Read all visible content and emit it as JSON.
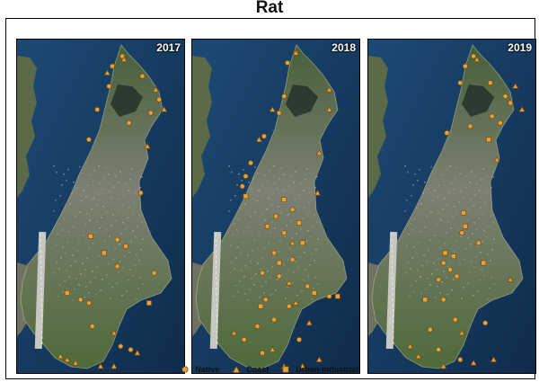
{
  "title": "Rat",
  "colors": {
    "marker": "#e8a23a",
    "water": "#13365a",
    "land": "#5b6d3f",
    "urban": "#8a8c86"
  },
  "panels": [
    {
      "year": "2017",
      "native": [
        [
          0.63,
          0.05
        ],
        [
          0.57,
          0.08
        ],
        [
          0.55,
          0.14
        ],
        [
          0.75,
          0.11
        ],
        [
          0.85,
          0.18
        ],
        [
          0.8,
          0.22
        ],
        [
          0.48,
          0.21
        ],
        [
          0.67,
          0.25
        ],
        [
          0.43,
          0.3
        ],
        [
          0.74,
          0.46
        ],
        [
          0.6,
          0.6
        ],
        [
          0.65,
          0.62
        ],
        [
          0.6,
          0.68
        ],
        [
          0.82,
          0.7
        ],
        [
          0.38,
          0.78
        ],
        [
          0.43,
          0.79
        ],
        [
          0.45,
          0.86
        ],
        [
          0.62,
          0.92
        ],
        [
          0.68,
          0.93
        ]
      ],
      "coast": [
        [
          0.64,
          0.06
        ],
        [
          0.54,
          0.1
        ],
        [
          0.83,
          0.15
        ],
        [
          0.88,
          0.21
        ],
        [
          0.78,
          0.32
        ],
        [
          0.26,
          0.95
        ],
        [
          0.58,
          0.98
        ],
        [
          0.72,
          0.94
        ],
        [
          0.35,
          0.97
        ],
        [
          0.5,
          0.98
        ],
        [
          0.3,
          0.96
        ],
        [
          0.58,
          0.88
        ]
      ],
      "urban": [
        [
          0.44,
          0.59
        ],
        [
          0.52,
          0.64
        ],
        [
          0.3,
          0.76
        ],
        [
          0.79,
          0.79
        ]
      ]
    },
    {
      "year": "2018",
      "native": [
        [
          0.62,
          0.04
        ],
        [
          0.57,
          0.07
        ],
        [
          0.55,
          0.17
        ],
        [
          0.52,
          0.22
        ],
        [
          0.43,
          0.29
        ],
        [
          0.35,
          0.37
        ],
        [
          0.32,
          0.41
        ],
        [
          0.3,
          0.44
        ],
        [
          0.6,
          0.51
        ],
        [
          0.5,
          0.53
        ],
        [
          0.45,
          0.56
        ],
        [
          0.55,
          0.58
        ],
        [
          0.49,
          0.64
        ],
        [
          0.6,
          0.66
        ],
        [
          0.42,
          0.7
        ],
        [
          0.52,
          0.71
        ],
        [
          0.69,
          0.74
        ],
        [
          0.82,
          0.77
        ],
        [
          0.44,
          0.78
        ],
        [
          0.58,
          0.8
        ],
        [
          0.49,
          0.84
        ],
        [
          0.39,
          0.86
        ],
        [
          0.64,
          0.9
        ],
        [
          0.31,
          0.9
        ],
        [
          0.42,
          0.94
        ]
      ],
      "coast": [
        [
          0.62,
          0.04
        ],
        [
          0.82,
          0.15
        ],
        [
          0.82,
          0.21
        ],
        [
          0.76,
          0.34
        ],
        [
          0.48,
          0.21
        ],
        [
          0.4,
          0.3
        ],
        [
          0.75,
          0.46
        ],
        [
          0.6,
          0.61
        ],
        [
          0.58,
          0.73
        ],
        [
          0.62,
          0.79
        ],
        [
          0.7,
          0.85
        ],
        [
          0.55,
          0.98
        ],
        [
          0.66,
          0.98
        ],
        [
          0.76,
          0.96
        ],
        [
          0.48,
          0.93
        ],
        [
          0.25,
          0.88
        ]
      ],
      "urban": [
        [
          0.32,
          0.47
        ],
        [
          0.55,
          0.48
        ],
        [
          0.64,
          0.55
        ],
        [
          0.66,
          0.61
        ],
        [
          0.52,
          0.67
        ],
        [
          0.87,
          0.77
        ],
        [
          0.41,
          0.8
        ],
        [
          0.73,
          0.76
        ]
      ]
    },
    {
      "year": "2019",
      "native": [
        [
          0.63,
          0.05
        ],
        [
          0.58,
          0.08
        ],
        [
          0.55,
          0.13
        ],
        [
          0.73,
          0.13
        ],
        [
          0.82,
          0.17
        ],
        [
          0.85,
          0.19
        ],
        [
          0.74,
          0.23
        ],
        [
          0.79,
          0.25
        ],
        [
          0.61,
          0.26
        ],
        [
          0.47,
          0.28
        ],
        [
          0.56,
          0.58
        ],
        [
          0.66,
          0.61
        ],
        [
          0.45,
          0.67
        ],
        [
          0.49,
          0.69
        ],
        [
          0.53,
          0.71
        ],
        [
          0.42,
          0.72
        ],
        [
          0.45,
          0.78
        ],
        [
          0.52,
          0.84
        ],
        [
          0.7,
          0.85
        ],
        [
          0.37,
          0.87
        ],
        [
          0.42,
          0.93
        ],
        [
          0.55,
          0.96
        ]
      ],
      "coast": [
        [
          0.65,
          0.06
        ],
        [
          0.88,
          0.14
        ],
        [
          0.92,
          0.21
        ],
        [
          0.77,
          0.36
        ],
        [
          0.85,
          0.72
        ],
        [
          0.63,
          0.97
        ],
        [
          0.75,
          0.96
        ],
        [
          0.3,
          0.95
        ],
        [
          0.45,
          0.98
        ],
        [
          0.56,
          0.88
        ],
        [
          0.25,
          0.92
        ]
      ],
      "urban": [
        [
          0.72,
          0.3
        ],
        [
          0.57,
          0.52
        ],
        [
          0.58,
          0.56
        ],
        [
          0.46,
          0.64
        ],
        [
          0.51,
          0.65
        ],
        [
          0.69,
          0.67
        ],
        [
          0.34,
          0.78
        ]
      ]
    }
  ],
  "legend": [
    {
      "label": "Native",
      "symbol": "circle"
    },
    {
      "label": "Coast",
      "symbol": "triangle"
    },
    {
      "label": "Urban-industrial",
      "symbol": "square"
    }
  ]
}
